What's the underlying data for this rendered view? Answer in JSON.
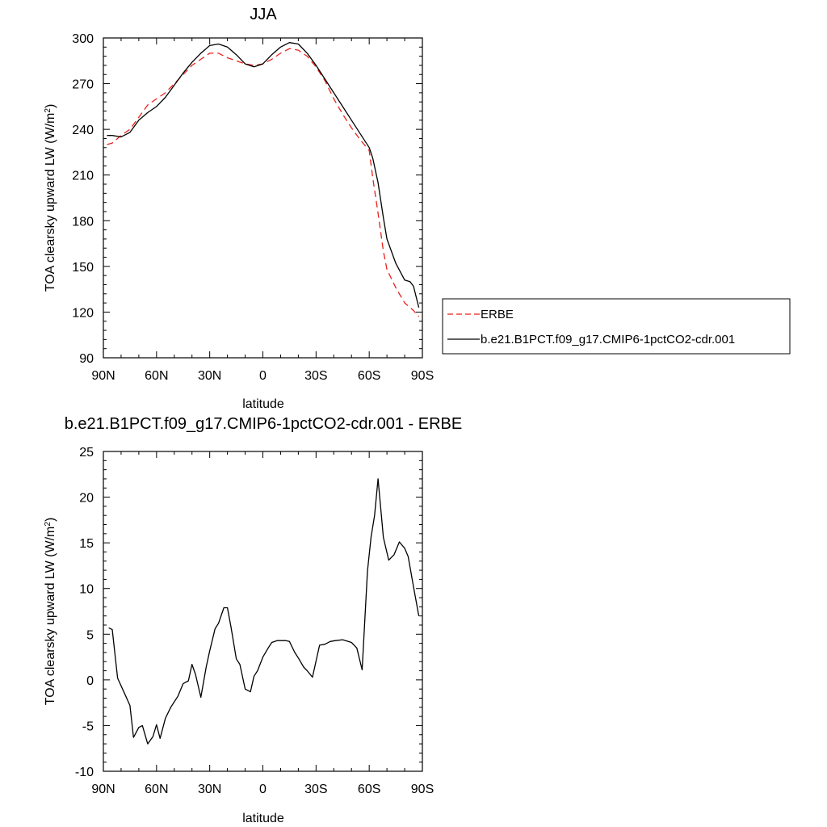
{
  "chart_data": [
    {
      "type": "line",
      "title": "JJA",
      "xlabel": "latitude",
      "ylabel": "TOA clearsky upward LW (W/m²)",
      "ylabel_base": "TOA clearsky upward LW (W/m",
      "ylabel_sup": "2",
      "ylabel_end": ")",
      "xlim": [
        90,
        -90
      ],
      "ylim": [
        90,
        300
      ],
      "x_ticks": [
        90,
        60,
        30,
        0,
        -30,
        -60,
        -90
      ],
      "x_tick_labels": [
        "90N",
        "60N",
        "30N",
        "0",
        "30S",
        "60S",
        "90S"
      ],
      "y_ticks": [
        90,
        120,
        150,
        180,
        210,
        240,
        270,
        300
      ],
      "y_tick_labels": [
        "90",
        "120",
        "150",
        "180",
        "210",
        "240",
        "270",
        "300"
      ],
      "legend": "right",
      "grid": false,
      "series": [
        {
          "name": "ERBE",
          "color": "#e8201c",
          "dash": "dashed",
          "x": [
            88,
            85,
            80,
            75,
            70,
            65,
            60,
            55,
            50,
            45,
            40,
            35,
            30,
            25,
            20,
            15,
            10,
            5,
            0,
            -5,
            -10,
            -15,
            -20,
            -25,
            -30,
            -35,
            -40,
            -45,
            -50,
            -55,
            -60,
            -62,
            -65,
            -68,
            -70,
            -75,
            -80,
            -85,
            -88
          ],
          "y": [
            230,
            231,
            236,
            240,
            248,
            256,
            260,
            264,
            270,
            276,
            282,
            286,
            290,
            290,
            287,
            285,
            283,
            282,
            283,
            286,
            290,
            293,
            292,
            288,
            281,
            272,
            260,
            250,
            241,
            233,
            226,
            208,
            185,
            160,
            148,
            136,
            126,
            121,
            117
          ]
        },
        {
          "name": "b.e21.B1PCT.f09_g17.CMIP6-1pctCO2-cdr.001",
          "color": "#000000",
          "dash": "solid",
          "x": [
            88,
            85,
            80,
            75,
            70,
            65,
            60,
            55,
            50,
            45,
            40,
            35,
            30,
            25,
            20,
            15,
            10,
            5,
            0,
            -5,
            -10,
            -15,
            -20,
            -25,
            -30,
            -35,
            -40,
            -45,
            -50,
            -55,
            -60,
            -62,
            -65,
            -68,
            -70,
            -75,
            -80,
            -83,
            -85,
            -88
          ],
          "y": [
            236,
            236,
            235,
            238,
            246,
            251,
            255,
            261,
            269,
            277,
            284,
            290,
            295,
            296,
            294,
            289,
            283,
            281,
            283,
            289,
            294,
            297,
            296,
            290,
            282,
            273,
            264,
            255,
            246,
            237,
            228,
            221,
            205,
            182,
            168,
            152,
            141,
            140,
            137,
            123
          ]
        }
      ]
    },
    {
      "type": "line",
      "title": "b.e21.B1PCT.f09_g17.CMIP6-1pctCO2-cdr.001 - ERBE",
      "xlabel": "latitude",
      "ylabel": "TOA clearsky upward LW (W/m²)",
      "ylabel_base": "TOA clearsky upward LW (W/m",
      "ylabel_sup": "2",
      "ylabel_end": ")",
      "xlim": [
        90,
        -90
      ],
      "ylim": [
        -10,
        25
      ],
      "x_ticks": [
        90,
        60,
        30,
        0,
        -30,
        -60,
        -90
      ],
      "x_tick_labels": [
        "90N",
        "60N",
        "30N",
        "0",
        "30S",
        "60S",
        "90S"
      ],
      "y_ticks": [
        -10,
        -5,
        0,
        5,
        10,
        15,
        20,
        25
      ],
      "y_tick_labels": [
        "-10",
        "-5",
        "0",
        "5",
        "10",
        "15",
        "20",
        "25"
      ],
      "grid": false,
      "series": [
        {
          "color": "#000000",
          "dash": "solid",
          "x": [
            87,
            85,
            82,
            78,
            75,
            73,
            70,
            68,
            65,
            62,
            60,
            58,
            55,
            52,
            50,
            48,
            45,
            42,
            40,
            38,
            35,
            32,
            30,
            27,
            25,
            22,
            20,
            18,
            15,
            13,
            10,
            7,
            5,
            3,
            0,
            -3,
            -5,
            -8,
            -10,
            -13,
            -15,
            -18,
            -20,
            -23,
            -25,
            -28,
            -32,
            -35,
            -38,
            -41,
            -45,
            -50,
            -53,
            -56,
            -59,
            -61,
            -63,
            -65,
            -68,
            -71,
            -74,
            -77,
            -80,
            -82,
            -85,
            -88
          ],
          "y": [
            5.7,
            5.5,
            0.2,
            -1.5,
            -2.8,
            -6.3,
            -5.2,
            -5.0,
            -7.0,
            -6.2,
            -4.9,
            -6.4,
            -4.2,
            -3.0,
            -2.4,
            -1.8,
            -0.4,
            -0.1,
            1.7,
            0.6,
            -1.9,
            1.4,
            3.2,
            5.6,
            6.2,
            7.9,
            7.9,
            5.8,
            2.3,
            1.7,
            -1.0,
            -1.3,
            0.4,
            1.0,
            2.5,
            3.5,
            4.1,
            4.3,
            4.3,
            4.3,
            4.2,
            3.0,
            2.4,
            1.4,
            1.0,
            0.3,
            3.8,
            3.9,
            4.2,
            4.3,
            4.4,
            4.1,
            3.5,
            1.1,
            11.9,
            15.6,
            18.0,
            22.0,
            15.6,
            13.1,
            13.7,
            15.1,
            14.4,
            13.5,
            10.2,
            7.0
          ]
        }
      ]
    }
  ]
}
